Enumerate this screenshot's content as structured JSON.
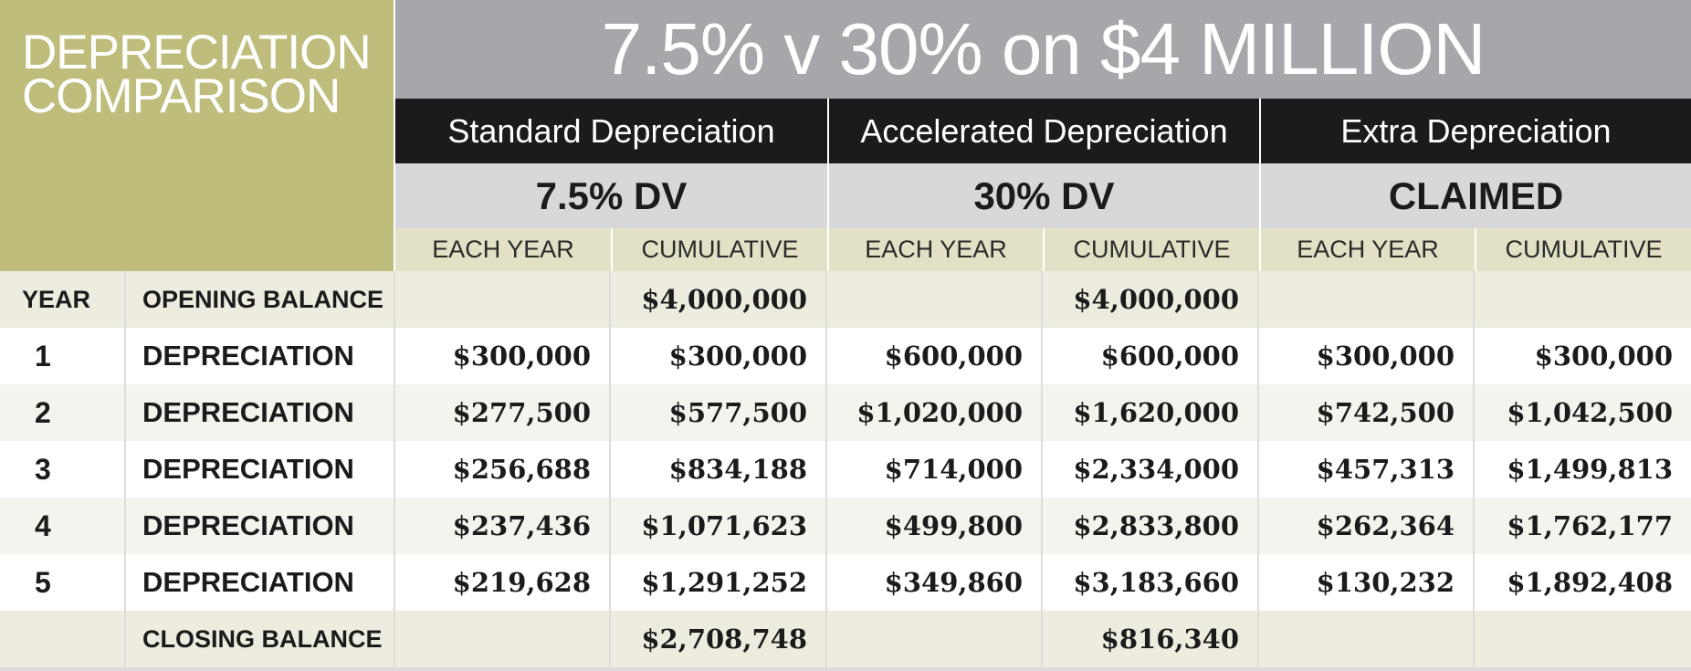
{
  "title_block": {
    "line1": "DEPRECIATION",
    "line2": "COMPARISON"
  },
  "main_title": "7.5% v 30% on $4 MILLION",
  "groups": [
    {
      "header": "Standard Depreciation",
      "subheader": "7.5% DV"
    },
    {
      "header": "Accelerated Depreciation",
      "subheader": "30% DV"
    },
    {
      "header": "Extra Depreciation",
      "subheader": "CLAIMED"
    }
  ],
  "column_labels": [
    "EACH YEAR",
    "CUMULATIVE",
    "EACH YEAR",
    "CUMULATIVE",
    "EACH YEAR",
    "CUMULATIVE"
  ],
  "rows": [
    {
      "year": "YEAR",
      "label": "OPENING BALANCE",
      "values": [
        "",
        "$4,000,000",
        "",
        "$4,000,000",
        "",
        ""
      ]
    },
    {
      "year": "1",
      "label": "DEPRECIATION",
      "values": [
        "$300,000",
        "$300,000",
        "$600,000",
        "$600,000",
        "$300,000",
        "$300,000"
      ]
    },
    {
      "year": "2",
      "label": "DEPRECIATION",
      "values": [
        "$277,500",
        "$577,500",
        "$1,020,000",
        "$1,620,000",
        "$742,500",
        "$1,042,500"
      ]
    },
    {
      "year": "3",
      "label": "DEPRECIATION",
      "values": [
        "$256,688",
        "$834,188",
        "$714,000",
        "$2,334,000",
        "$457,313",
        "$1,499,813"
      ]
    },
    {
      "year": "4",
      "label": "DEPRECIATION",
      "values": [
        "$237,436",
        "$1,071,623",
        "$499,800",
        "$2,833,800",
        "$262,364",
        "$1,762,177"
      ]
    },
    {
      "year": "5",
      "label": "DEPRECIATION",
      "values": [
        "$219,628",
        "$1,291,252",
        "$349,860",
        "$3,183,660",
        "$130,232",
        "$1,892,408"
      ]
    },
    {
      "year": "",
      "label": "CLOSING BALANCE",
      "values": [
        "",
        "$2,708,748",
        "",
        "$816,340",
        "",
        ""
      ]
    }
  ],
  "colors": {
    "olive": "#bfbd7c",
    "title_grey": "#a5a7aa",
    "header_black": "#1b1b1b",
    "sub_grey": "#d7d8da",
    "label_cream": "#e2e1c6"
  }
}
